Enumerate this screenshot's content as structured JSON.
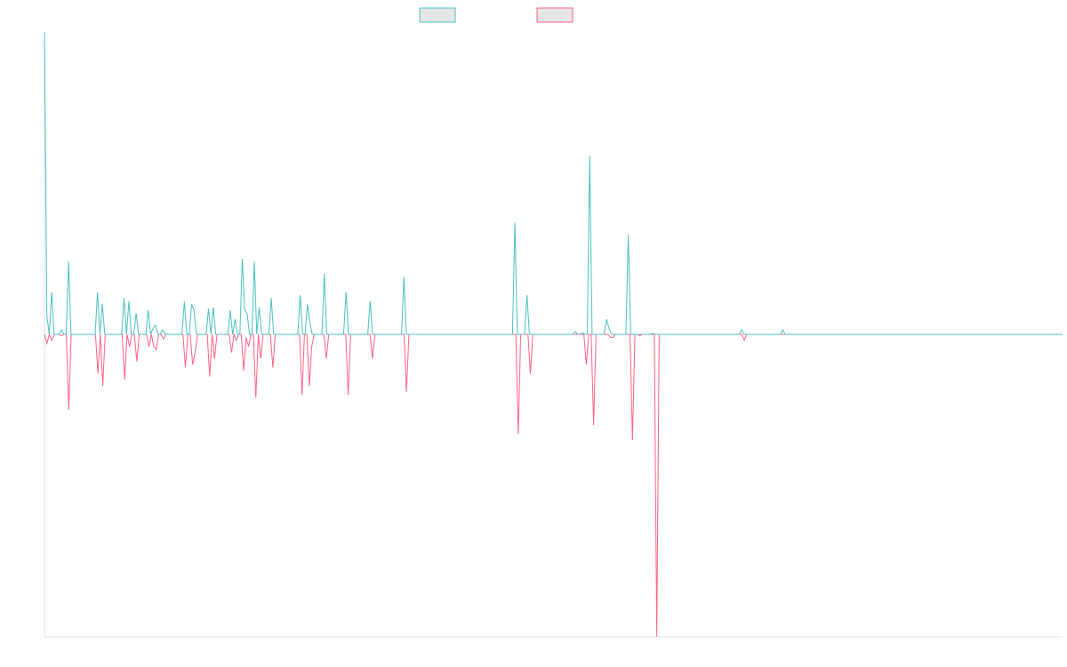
{
  "chart_data": {
    "type": "line",
    "legend_position": "top-center",
    "grid": false,
    "ylim": [
      -100,
      100
    ],
    "series": [
      {
        "name": "",
        "color": "#4bc0c0",
        "legend_fill": "#e6e6e6",
        "values": [
          100,
          6,
          0,
          14,
          0,
          0,
          0,
          1.5,
          0,
          0,
          24,
          0,
          0,
          0,
          0,
          0,
          0,
          0,
          0,
          0,
          0,
          0,
          14,
          0,
          10,
          0,
          0,
          0,
          0,
          0,
          0,
          0,
          0,
          12,
          0,
          11,
          0,
          0,
          7,
          0,
          0,
          0,
          0,
          8,
          0,
          2,
          3,
          0,
          0,
          1.5,
          0,
          0,
          0,
          0,
          0,
          0,
          0,
          0,
          11,
          0,
          0,
          10,
          8,
          0,
          0,
          0,
          0,
          0,
          8.5,
          0,
          9,
          0,
          0,
          0,
          0,
          0,
          0,
          8,
          0,
          5,
          0,
          0,
          25,
          8,
          7,
          0,
          0,
          24,
          0,
          9,
          0,
          0,
          0,
          0,
          12,
          0,
          0,
          0,
          0,
          0,
          0,
          0,
          0,
          0,
          0,
          0,
          13,
          0,
          0,
          10,
          4,
          0,
          0,
          0,
          0,
          0,
          20,
          0,
          0,
          0,
          0,
          0,
          0,
          0,
          0,
          14,
          0,
          0,
          0,
          0,
          0,
          0,
          0,
          0,
          0,
          11,
          0,
          0,
          0,
          0,
          0,
          0,
          0,
          0,
          0,
          0,
          0,
          0,
          0,
          19,
          0,
          0,
          0,
          0,
          0,
          0,
          0,
          0,
          0,
          0,
          0,
          0,
          0,
          0,
          0,
          0,
          0,
          0,
          0,
          0,
          0,
          0,
          0,
          0,
          0,
          0,
          0,
          0,
          0,
          0,
          0,
          0,
          0,
          0,
          0,
          0,
          0,
          0,
          0,
          0,
          0,
          0,
          0,
          0,
          0,
          37,
          0,
          0,
          0,
          0,
          13,
          0,
          0,
          0,
          0,
          0,
          0,
          0,
          0,
          0,
          0,
          0,
          0,
          0,
          0,
          0,
          0,
          0,
          0,
          0,
          1,
          0,
          0,
          0.5,
          0,
          0,
          59,
          0,
          0,
          0,
          0,
          0,
          0,
          5,
          2,
          0,
          0,
          0,
          0,
          0,
          0,
          0,
          33,
          0,
          0,
          0,
          0,
          0,
          0,
          0,
          0,
          0,
          0.3,
          0,
          0,
          0,
          0,
          0,
          0,
          0,
          0,
          0,
          0,
          0,
          0,
          0,
          0,
          0,
          0,
          0,
          0,
          0,
          0,
          0,
          0,
          0,
          0,
          0,
          0,
          0,
          0,
          0,
          0,
          0,
          0,
          0,
          0,
          0,
          0,
          1.5,
          0,
          0,
          0,
          0,
          0,
          0,
          0,
          0,
          0,
          0,
          0,
          0,
          0,
          0,
          0,
          0,
          1.5,
          0,
          0,
          0,
          0,
          0,
          0,
          0,
          0,
          0,
          0,
          0,
          0,
          0,
          0,
          0,
          0,
          0,
          0,
          0,
          0,
          0,
          0,
          0,
          0,
          0,
          0,
          0,
          0,
          0,
          0,
          0,
          0,
          0,
          0,
          0,
          0,
          0,
          0,
          0,
          0,
          0,
          0,
          0,
          0,
          0,
          0,
          0,
          0,
          0,
          0,
          0,
          0,
          0,
          0,
          0,
          0,
          0,
          0,
          0,
          0,
          0,
          0,
          0,
          0,
          0,
          0,
          0,
          0,
          0,
          0,
          0,
          0,
          0,
          0,
          0,
          0,
          0,
          0,
          0,
          0,
          0,
          0,
          0,
          0,
          0,
          0,
          0,
          0,
          0,
          0,
          0,
          0,
          0,
          0,
          0,
          0,
          0,
          0,
          0,
          0,
          0,
          0,
          0,
          0,
          0,
          0,
          0,
          0,
          0,
          0,
          0,
          0,
          0,
          0,
          0,
          0
        ]
      },
      {
        "name": "",
        "color": "#ff6384",
        "legend_fill": "#e6e6e6",
        "values": [
          0,
          -3,
          0,
          -2,
          0,
          0,
          0,
          -0.5,
          0,
          0,
          -25,
          0,
          0,
          0,
          0,
          0,
          0,
          0,
          0,
          0,
          0,
          0,
          -13,
          0,
          -17,
          0,
          0,
          0,
          0,
          0,
          0,
          0,
          0,
          -15,
          0,
          -4,
          0,
          0,
          -9,
          0,
          0,
          0,
          0,
          -4,
          0,
          -4,
          -5,
          0,
          0,
          -1.5,
          0,
          0,
          0,
          0,
          0,
          0,
          0,
          0,
          -11,
          0,
          0,
          -10,
          -6,
          0,
          0,
          0,
          0,
          0,
          -14,
          0,
          -8,
          0,
          0,
          0,
          0,
          0,
          0,
          -6,
          0,
          -2,
          0,
          0,
          -12,
          -1,
          -4,
          0,
          0,
          -21,
          0,
          -8,
          0,
          0,
          0,
          0,
          -11,
          0,
          0,
          0,
          0,
          0,
          0,
          0,
          0,
          0,
          0,
          0,
          -20,
          0,
          0,
          -17,
          -4,
          0,
          0,
          0,
          0,
          0,
          -8,
          0,
          0,
          0,
          0,
          0,
          0,
          0,
          0,
          -20,
          0,
          0,
          0,
          0,
          0,
          0,
          0,
          0,
          0,
          -8,
          0,
          0,
          0,
          0,
          0,
          0,
          0,
          0,
          0,
          0,
          0,
          0,
          0,
          -19,
          0,
          0,
          0,
          0,
          0,
          0,
          0,
          0,
          0,
          0,
          0,
          0,
          0,
          0,
          0,
          0,
          0,
          0,
          0,
          0,
          0,
          0,
          0,
          0,
          0,
          0,
          0,
          0,
          0,
          0,
          0,
          0,
          0,
          0,
          0,
          0,
          0,
          0,
          0,
          0,
          0,
          0,
          0,
          0,
          0,
          -33,
          0,
          0,
          0,
          0,
          -13,
          0,
          0,
          0,
          0,
          0,
          0,
          0,
          0,
          0,
          0,
          0,
          0,
          0,
          0,
          0,
          0,
          0,
          0,
          0,
          0,
          0,
          0,
          -10,
          0,
          0,
          -30,
          0,
          0,
          0,
          0,
          0,
          0,
          -1,
          -1,
          0,
          0,
          0,
          0,
          0,
          0,
          0,
          -35,
          0,
          0,
          -0.5,
          0,
          0,
          0,
          0,
          0,
          0,
          -100,
          0,
          0,
          0,
          0,
          0,
          0,
          0,
          0,
          0,
          0,
          0,
          0,
          0,
          0,
          0,
          0,
          0,
          0,
          0,
          0,
          0,
          0,
          0,
          0,
          0,
          0,
          0,
          0,
          0,
          0,
          0,
          0,
          0,
          0,
          0,
          -2,
          0,
          0,
          0,
          0,
          0,
          0,
          0,
          0,
          0,
          0,
          0,
          0,
          0,
          0,
          0,
          0,
          0,
          0,
          0,
          0,
          0,
          0,
          0,
          0,
          0,
          0,
          0,
          0,
          0,
          0,
          0,
          0,
          0,
          0,
          0,
          0,
          0,
          0,
          0,
          0,
          0,
          0,
          0,
          0,
          0,
          0,
          0,
          0,
          0,
          0,
          0,
          0,
          0,
          0,
          0,
          0,
          0,
          0,
          0,
          0,
          0,
          0,
          0,
          0,
          0,
          0,
          0,
          0,
          0,
          0,
          0,
          0,
          0,
          0,
          0,
          0,
          0,
          0,
          0,
          0,
          0,
          0,
          0,
          0,
          0,
          0,
          0,
          0,
          0,
          0,
          0,
          0,
          0,
          0,
          0,
          0,
          0,
          0,
          0,
          0,
          0,
          0,
          0,
          0,
          0,
          0,
          0,
          0,
          0,
          0,
          0,
          0,
          0,
          0,
          0,
          0,
          0,
          0,
          0,
          0,
          0,
          0,
          0,
          0,
          0,
          0,
          0,
          0,
          0,
          0,
          0
        ]
      }
    ]
  }
}
